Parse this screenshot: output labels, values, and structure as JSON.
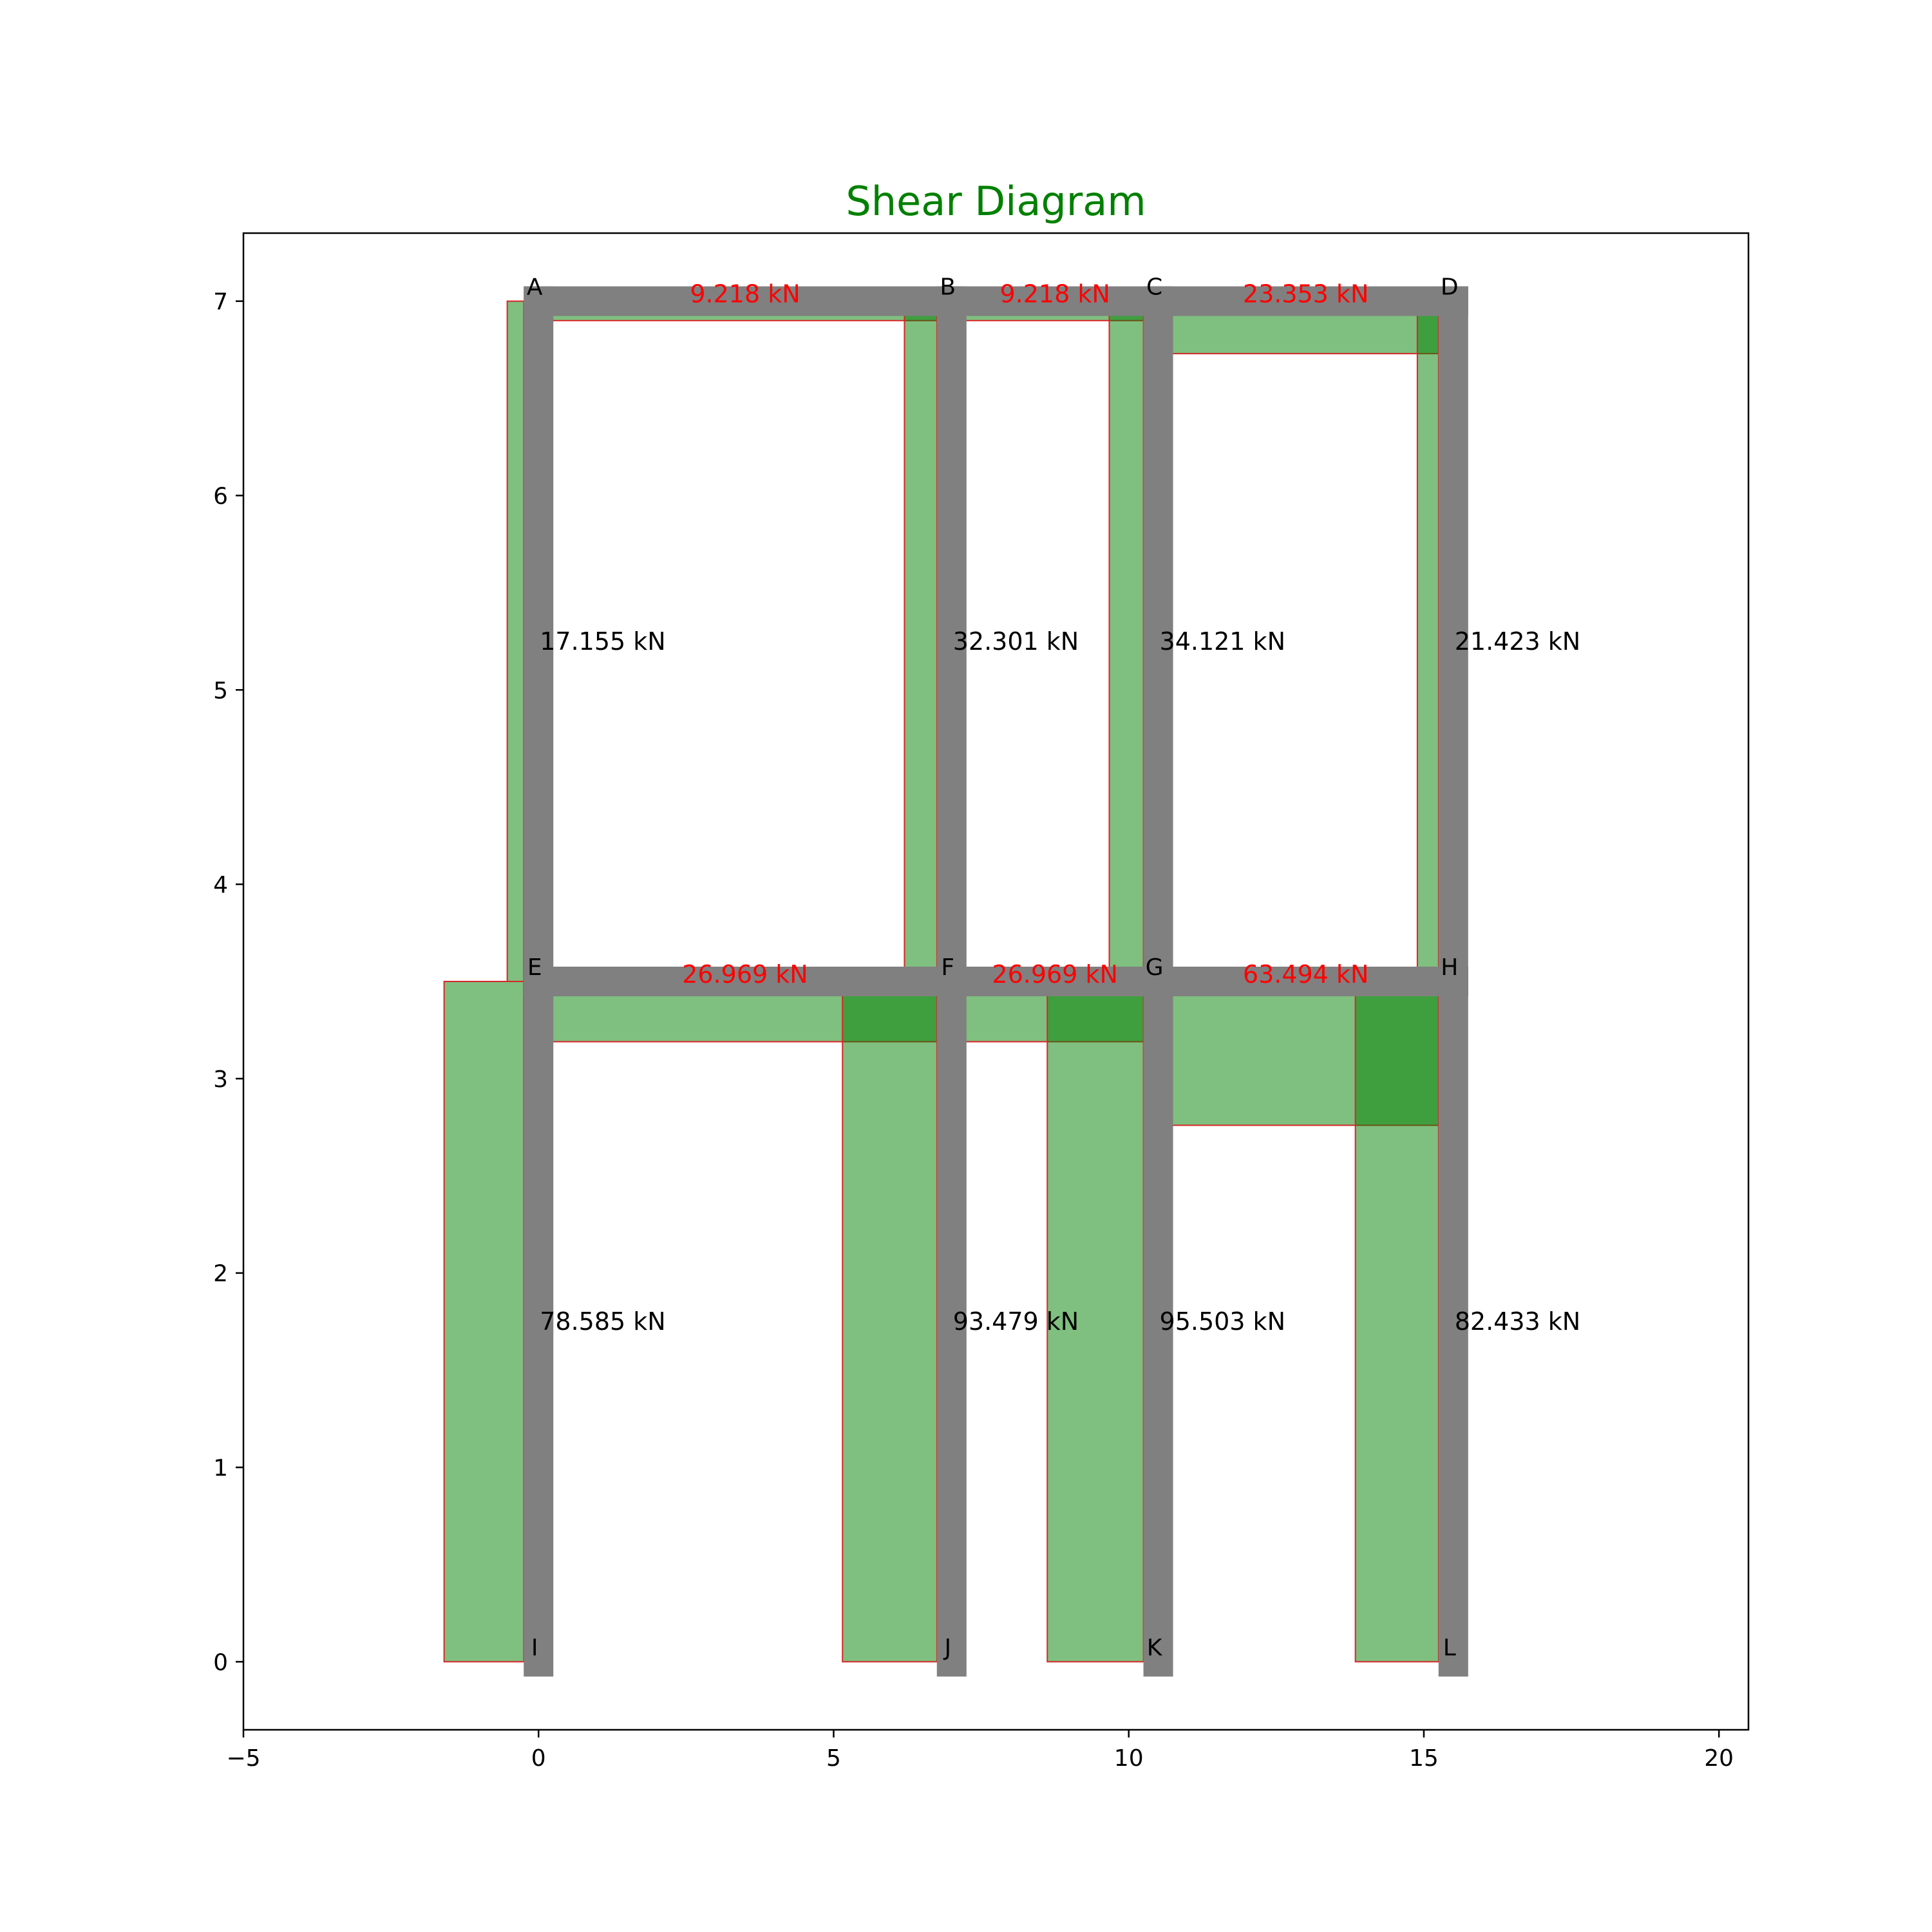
{
  "chart_data": {
    "type": "shear-diagram",
    "title": "Shear Diagram",
    "xlim": [
      -5,
      20.5
    ],
    "ylim": [
      -0.35,
      7.35
    ],
    "x_ticks": [
      -5,
      0,
      5,
      10,
      15,
      20
    ],
    "y_ticks": [
      0,
      1,
      2,
      3,
      4,
      5,
      6,
      7
    ],
    "grid": false,
    "colors": {
      "title": "#008000",
      "member": "#808080",
      "fill": "#008000",
      "outline": "#d62728",
      "beam_label": "#ff0000",
      "column_label": "#000000"
    },
    "nodes": [
      {
        "name": "A",
        "x": 0,
        "y": 7
      },
      {
        "name": "B",
        "x": 7,
        "y": 7
      },
      {
        "name": "C",
        "x": 10.5,
        "y": 7
      },
      {
        "name": "D",
        "x": 15.5,
        "y": 7
      },
      {
        "name": "E",
        "x": 0,
        "y": 3.5
      },
      {
        "name": "F",
        "x": 7,
        "y": 3.5
      },
      {
        "name": "G",
        "x": 10.5,
        "y": 3.5
      },
      {
        "name": "H",
        "x": 15.5,
        "y": 3.5
      },
      {
        "name": "I",
        "x": 0,
        "y": 0
      },
      {
        "name": "J",
        "x": 7,
        "y": 0
      },
      {
        "name": "K",
        "x": 10.5,
        "y": 0
      },
      {
        "name": "L",
        "x": 15.5,
        "y": 0
      }
    ],
    "beams": [
      {
        "from": "A",
        "to": "B",
        "shear": 9.218,
        "label": "9.218 kN",
        "depth": 0.1
      },
      {
        "from": "B",
        "to": "C",
        "shear": 9.218,
        "label": "9.218 kN",
        "depth": 0.1
      },
      {
        "from": "C",
        "to": "D",
        "shear": 23.353,
        "label": "23.353 kN",
        "depth": 0.27
      },
      {
        "from": "E",
        "to": "F",
        "shear": 26.969,
        "label": "26.969 kN",
        "depth": 0.31
      },
      {
        "from": "F",
        "to": "G",
        "shear": 26.969,
        "label": "26.969 kN",
        "depth": 0.31
      },
      {
        "from": "G",
        "to": "H",
        "shear": 63.494,
        "label": "63.494 kN",
        "depth": 0.74
      }
    ],
    "columns": [
      {
        "from": "A",
        "to": "E",
        "shear": 17.155,
        "label": "17.155 kN",
        "width": 0.28
      },
      {
        "from": "B",
        "to": "F",
        "shear": 32.301,
        "label": "32.301 kN",
        "width": 0.55
      },
      {
        "from": "C",
        "to": "G",
        "shear": 34.121,
        "label": "34.121 kN",
        "width": 0.58
      },
      {
        "from": "D",
        "to": "H",
        "shear": 21.423,
        "label": "21.423 kN",
        "width": 0.36
      },
      {
        "from": "E",
        "to": "I",
        "shear": 78.585,
        "label": "78.585 kN",
        "width": 1.35
      },
      {
        "from": "F",
        "to": "J",
        "shear": 93.479,
        "label": "93.479 kN",
        "width": 1.6
      },
      {
        "from": "G",
        "to": "K",
        "shear": 95.503,
        "label": "95.503 kN",
        "width": 1.63
      },
      {
        "from": "H",
        "to": "L",
        "shear": 82.433,
        "label": "82.433 kN",
        "width": 1.41
      }
    ]
  }
}
